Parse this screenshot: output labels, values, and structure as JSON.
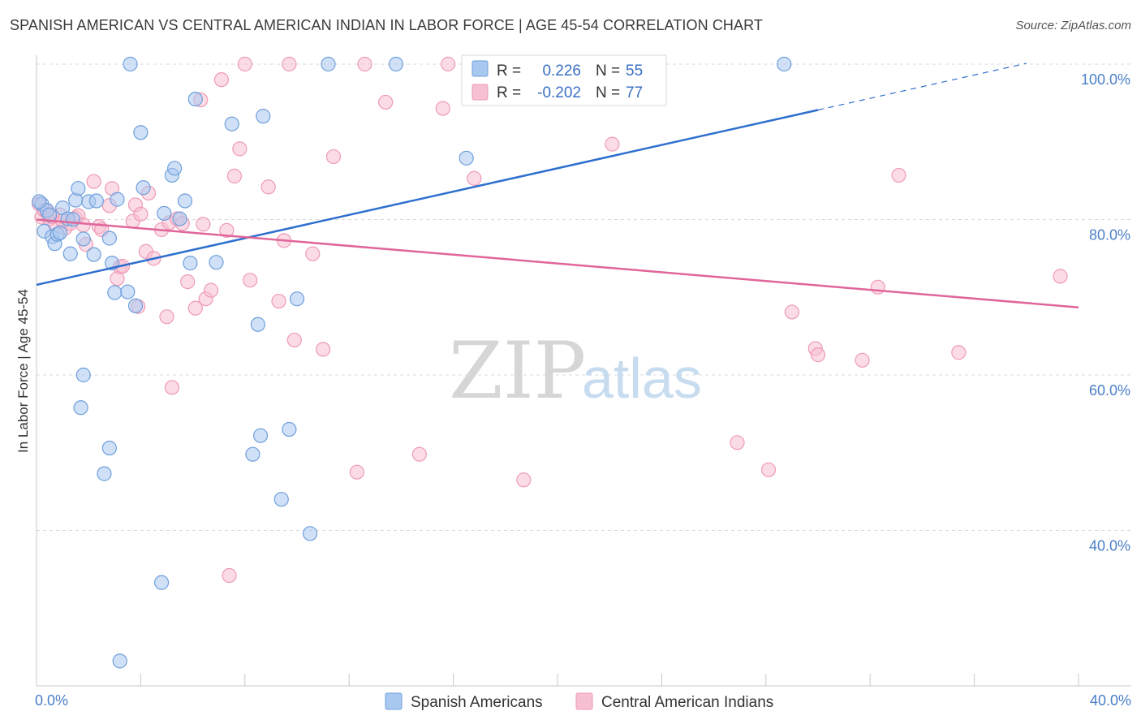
{
  "title": "SPANISH AMERICAN VS CENTRAL AMERICAN INDIAN IN LABOR FORCE | AGE 45-54 CORRELATION CHART",
  "source": "Source: ZipAtlas.com",
  "watermark": {
    "zip": "ZIP",
    "atlas": "atlas"
  },
  "legend_top": {
    "rows": [
      {
        "r_label": "R =",
        "r_value": "0.226",
        "n_label": "N =",
        "n_value": "55"
      },
      {
        "r_label": "R =",
        "r_value": "-0.202",
        "n_label": "N =",
        "n_value": "77"
      }
    ]
  },
  "legend_bottom": {
    "items": [
      "Spanish Americans",
      "Central American Indians"
    ]
  },
  "colors": {
    "blue_fill": "#a9c8f0",
    "blue_stroke": "#6f9fdc",
    "blue_line": "#2e6fcf",
    "pink_fill": "#f7c0d2",
    "pink_stroke": "#ee9ab6",
    "pink_line": "#e0659a",
    "tick_label": "#4a7fc8",
    "grid": "#d8d8d8"
  },
  "chart_data": {
    "type": "scatter",
    "title": "SPANISH AMERICAN VS CENTRAL AMERICAN INDIAN IN LABOR FORCE | AGE 45-54 CORRELATION CHART",
    "xlabel": "",
    "ylabel": "In Labor Force | Age 45-54",
    "xlim": [
      0,
      40
    ],
    "ylim": [
      22,
      103
    ],
    "x_tick_labels": [
      "0.0%",
      "40.0%"
    ],
    "y_ticks": [
      40,
      60,
      80,
      100
    ],
    "y_tick_labels": [
      "40.0%",
      "60.0%",
      "80.0%",
      "100.0%"
    ],
    "grid": true,
    "series": [
      {
        "name": "Spanish Americans",
        "color": "#6f9fdc",
        "r": "0.226",
        "n": "55",
        "points": [
          [
            0.2,
            82.0
          ],
          [
            0.4,
            81.2
          ],
          [
            0.3,
            78.5
          ],
          [
            0.6,
            77.8
          ],
          [
            0.7,
            76.9
          ],
          [
            0.8,
            78.1
          ],
          [
            1.0,
            81.5
          ],
          [
            1.2,
            80.1
          ],
          [
            1.3,
            75.6
          ],
          [
            1.4,
            80.0
          ],
          [
            1.5,
            82.5
          ],
          [
            1.6,
            84.0
          ],
          [
            1.8,
            77.5
          ],
          [
            2.0,
            82.3
          ],
          [
            2.2,
            75.5
          ],
          [
            2.3,
            82.4
          ],
          [
            2.8,
            77.6
          ],
          [
            2.9,
            74.4
          ],
          [
            3.1,
            82.6
          ],
          [
            3.0,
            70.6
          ],
          [
            3.5,
            70.7
          ],
          [
            3.8,
            68.9
          ],
          [
            3.6,
            100.0
          ],
          [
            4.0,
            91.2
          ],
          [
            4.1,
            84.1
          ],
          [
            4.9,
            80.8
          ],
          [
            5.2,
            85.7
          ],
          [
            5.3,
            86.6
          ],
          [
            5.5,
            80.1
          ],
          [
            5.7,
            82.4
          ],
          [
            5.9,
            74.4
          ],
          [
            6.1,
            95.5
          ],
          [
            6.9,
            74.5
          ],
          [
            7.5,
            92.3
          ],
          [
            8.7,
            93.3
          ],
          [
            10.0,
            69.8
          ],
          [
            11.2,
            100.0
          ],
          [
            13.8,
            100.0
          ],
          [
            16.5,
            87.9
          ],
          [
            28.7,
            100.0
          ],
          [
            1.8,
            60.0
          ],
          [
            1.7,
            55.8
          ],
          [
            2.8,
            50.6
          ],
          [
            2.6,
            47.3
          ],
          [
            8.5,
            66.5
          ],
          [
            8.6,
            52.2
          ],
          [
            8.3,
            49.8
          ],
          [
            9.7,
            53.0
          ],
          [
            9.4,
            44.0
          ],
          [
            10.5,
            39.6
          ],
          [
            4.8,
            33.3
          ],
          [
            3.2,
            23.2
          ],
          [
            0.1,
            82.3
          ],
          [
            0.5,
            80.6
          ],
          [
            0.9,
            78.3
          ]
        ],
        "trend": {
          "x0": 0,
          "y0": 71.6,
          "x1": 30,
          "y1": 94.1,
          "dash_x1": 38,
          "dash_y1": 100.1
        }
      },
      {
        "name": "Central American Indians",
        "color": "#ee9ab6",
        "r": "-0.202",
        "n": "77",
        "points": [
          [
            0.1,
            82.0
          ],
          [
            0.2,
            80.3
          ],
          [
            0.3,
            81.2
          ],
          [
            0.5,
            80.1
          ],
          [
            0.7,
            79.4
          ],
          [
            0.9,
            80.6
          ],
          [
            1.1,
            78.9
          ],
          [
            1.3,
            79.5
          ],
          [
            1.5,
            80.2
          ],
          [
            1.6,
            80.5
          ],
          [
            1.8,
            79.3
          ],
          [
            1.9,
            76.8
          ],
          [
            2.2,
            84.9
          ],
          [
            2.4,
            79.1
          ],
          [
            2.5,
            78.7
          ],
          [
            2.8,
            81.8
          ],
          [
            2.9,
            84.0
          ],
          [
            3.2,
            73.9
          ],
          [
            3.3,
            74.0
          ],
          [
            3.1,
            72.4
          ],
          [
            3.7,
            79.8
          ],
          [
            3.8,
            81.9
          ],
          [
            3.9,
            68.8
          ],
          [
            4.0,
            80.7
          ],
          [
            4.2,
            75.9
          ],
          [
            4.3,
            83.4
          ],
          [
            4.5,
            75.0
          ],
          [
            4.8,
            78.7
          ],
          [
            5.0,
            67.5
          ],
          [
            5.1,
            79.6
          ],
          [
            5.2,
            58.4
          ],
          [
            5.4,
            80.1
          ],
          [
            5.6,
            79.5
          ],
          [
            5.8,
            72.0
          ],
          [
            6.1,
            68.6
          ],
          [
            6.3,
            95.4
          ],
          [
            6.4,
            79.4
          ],
          [
            6.5,
            69.8
          ],
          [
            6.7,
            70.9
          ],
          [
            7.1,
            98.0
          ],
          [
            7.3,
            78.6
          ],
          [
            7.6,
            85.6
          ],
          [
            7.8,
            89.1
          ],
          [
            8.0,
            100.0
          ],
          [
            8.2,
            72.2
          ],
          [
            8.9,
            84.2
          ],
          [
            9.3,
            69.5
          ],
          [
            9.5,
            77.3
          ],
          [
            9.7,
            100.0
          ],
          [
            9.9,
            64.5
          ],
          [
            10.6,
            75.6
          ],
          [
            11.0,
            63.3
          ],
          [
            11.4,
            88.1
          ],
          [
            12.3,
            47.5
          ],
          [
            12.6,
            100.0
          ],
          [
            13.4,
            95.1
          ],
          [
            14.7,
            49.8
          ],
          [
            15.6,
            94.3
          ],
          [
            15.8,
            100.0
          ],
          [
            16.8,
            85.3
          ],
          [
            18.7,
            46.5
          ],
          [
            22.1,
            89.7
          ],
          [
            22.5,
            100.0
          ],
          [
            26.9,
            51.3
          ],
          [
            28.1,
            47.8
          ],
          [
            29.0,
            68.1
          ],
          [
            29.9,
            63.4
          ],
          [
            30.0,
            62.6
          ],
          [
            31.7,
            61.9
          ],
          [
            32.3,
            71.3
          ],
          [
            33.1,
            85.7
          ],
          [
            35.4,
            62.9
          ],
          [
            39.3,
            72.7
          ],
          [
            7.4,
            34.2
          ],
          [
            0.4,
            81.0
          ],
          [
            0.6,
            80.4
          ],
          [
            1.0,
            79.8
          ]
        ],
        "trend": {
          "x0": 0,
          "y0": 80.0,
          "x1": 40,
          "y1": 68.7
        }
      }
    ]
  }
}
